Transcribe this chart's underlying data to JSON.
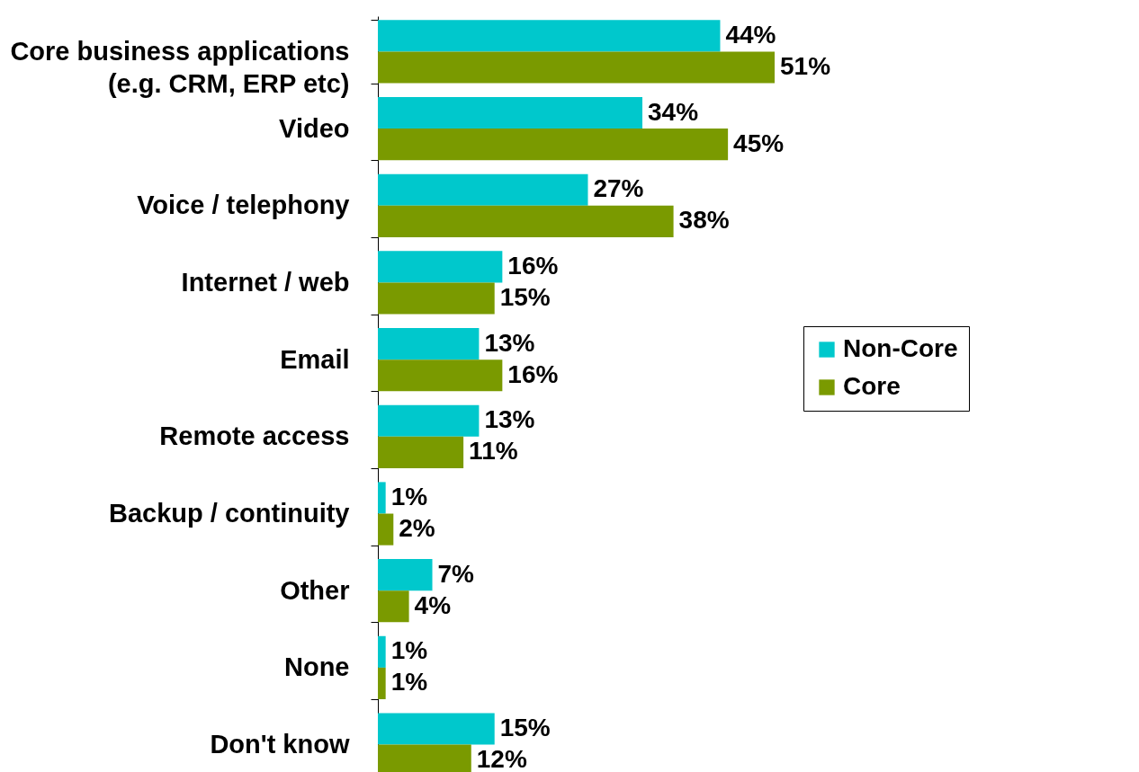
{
  "chart_data": {
    "type": "bar",
    "orientation": "horizontal",
    "categories": [
      "Core business applications (e.g. CRM, ERP etc)",
      "Video",
      "Voice / telephony",
      "Internet / web",
      "Email",
      "Remote access",
      "Backup / continuity",
      "Other",
      "None",
      "Don't know"
    ],
    "series": [
      {
        "name": "Non-Core",
        "color": "#00c8cc",
        "values": [
          44,
          34,
          27,
          16,
          13,
          13,
          1,
          7,
          1,
          15
        ],
        "value_labels": [
          "44%",
          "34%",
          "27%",
          "16%",
          "13%",
          "13%",
          "1%",
          "7%",
          "1%",
          "15%"
        ]
      },
      {
        "name": "Core",
        "color": "#7a9a00",
        "values": [
          51,
          45,
          38,
          15,
          16,
          11,
          2,
          4,
          1,
          12
        ],
        "value_labels": [
          "51%",
          "45%",
          "38%",
          "15%",
          "16%",
          "11%",
          "2%",
          "4%",
          "1%",
          "12%"
        ]
      }
    ],
    "legend": "right",
    "grid": false
  }
}
